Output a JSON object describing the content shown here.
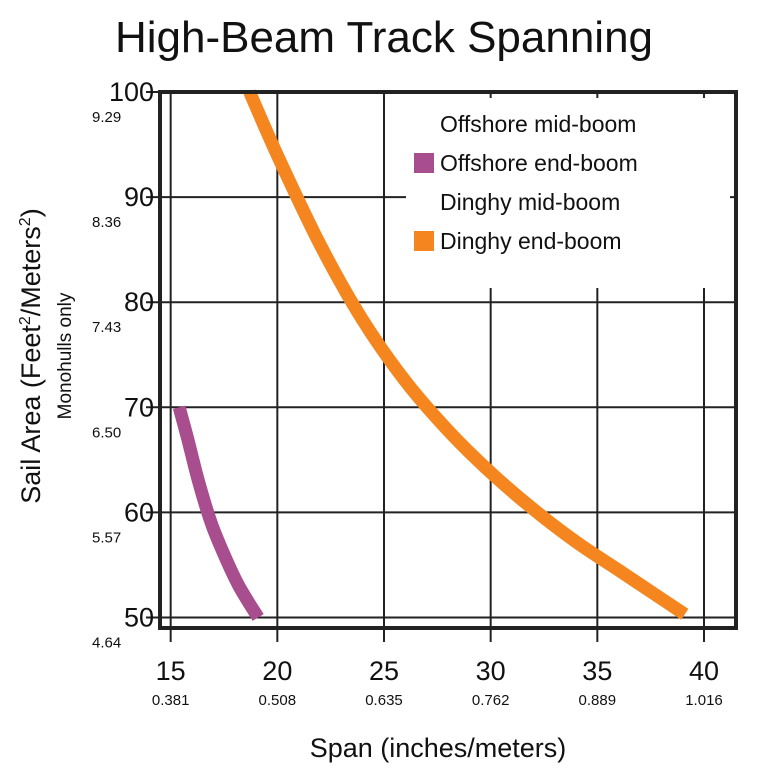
{
  "chart_data": {
    "type": "line",
    "title": "High-Beam Track Spanning",
    "xlabel": "Span (inches/meters)",
    "ylabel_main": "Sail Area (Feet",
    "ylabel_sup1": "2",
    "ylabel_mid": "/Meters",
    "ylabel_sup2": "2",
    "ylabel_end": ")",
    "ylabel_sub": "Monohulls only",
    "xlim": [
      14.5,
      41.5
    ],
    "ylim": [
      49,
      100
    ],
    "x_ticks": [
      {
        "value": 15,
        "label": "15",
        "sub": "0.381"
      },
      {
        "value": 20,
        "label": "20",
        "sub": "0.508"
      },
      {
        "value": 25,
        "label": "25",
        "sub": "0.635"
      },
      {
        "value": 30,
        "label": "30",
        "sub": "0.762"
      },
      {
        "value": 35,
        "label": "35",
        "sub": "0.889"
      },
      {
        "value": 40,
        "label": "40",
        "sub": "1.016"
      }
    ],
    "y_ticks": [
      {
        "value": 100,
        "label": "100",
        "sub": "9.29"
      },
      {
        "value": 90,
        "label": "90",
        "sub": "8.36"
      },
      {
        "value": 80,
        "label": "80",
        "sub": "7.43"
      },
      {
        "value": 70,
        "label": "70",
        "sub": "6.50"
      },
      {
        "value": 60,
        "label": "60",
        "sub": "5.57"
      },
      {
        "value": 50,
        "label": "50",
        "sub": "4.64"
      }
    ],
    "grid": true,
    "legend_position": "top-right",
    "legend": [
      {
        "label": "Offshore mid-boom",
        "swatch": false,
        "color": ""
      },
      {
        "label": "Offshore end-boom",
        "swatch": true,
        "color": "#a84d8e"
      },
      {
        "label": "Dinghy mid-boom",
        "swatch": false,
        "color": ""
      },
      {
        "label": "Dinghy end-boom",
        "swatch": true,
        "color": "#f5861f"
      }
    ],
    "series": [
      {
        "name": "Offshore end-boom",
        "color": "#a84d8e",
        "points": [
          [
            15.4,
            70
          ],
          [
            15.8,
            67
          ],
          [
            16.3,
            63
          ],
          [
            16.9,
            59
          ],
          [
            17.5,
            56
          ],
          [
            18.2,
            53
          ],
          [
            19.1,
            50
          ]
        ]
      },
      {
        "name": "Dinghy end-boom",
        "color": "#f5861f",
        "points": [
          [
            18.7,
            100
          ],
          [
            20,
            94
          ],
          [
            22,
            85.5
          ],
          [
            24,
            78.3
          ],
          [
            26,
            72.5
          ],
          [
            28,
            67.8
          ],
          [
            30,
            63.8
          ],
          [
            32,
            60.3
          ],
          [
            34,
            57.2
          ],
          [
            36,
            54.5
          ],
          [
            37.7,
            52.2
          ],
          [
            39.1,
            50.3
          ]
        ]
      }
    ]
  }
}
